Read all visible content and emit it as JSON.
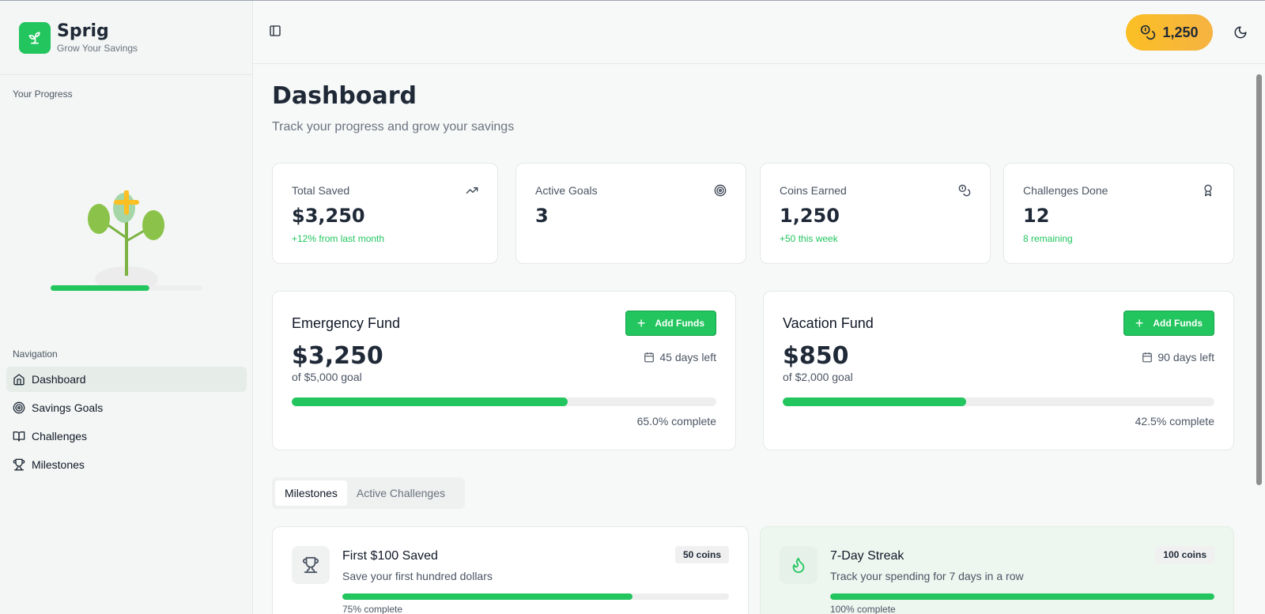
{
  "brand": {
    "name": "Sprig",
    "tagline": "Grow Your Savings"
  },
  "sidebar": {
    "progress_label": "Your Progress",
    "plant_progress": 0.65,
    "nav_label": "Navigation",
    "items": [
      {
        "label": "Dashboard",
        "icon": "home-icon",
        "active": true
      },
      {
        "label": "Savings Goals",
        "icon": "target-icon"
      },
      {
        "label": "Challenges",
        "icon": "book-icon"
      },
      {
        "label": "Milestones",
        "icon": "trophy-icon"
      }
    ]
  },
  "header": {
    "coins": "1,250"
  },
  "page": {
    "title": "Dashboard",
    "subtitle": "Track your progress and grow your savings"
  },
  "stats": [
    {
      "title": "Total Saved",
      "value": "$3,250",
      "note": "+12% from last month",
      "icon": "trending-up-icon"
    },
    {
      "title": "Active Goals",
      "value": "3",
      "note": "",
      "icon": "target-icon"
    },
    {
      "title": "Coins Earned",
      "value": "1,250",
      "note": "+50 this week",
      "icon": "coins-icon"
    },
    {
      "title": "Challenges Done",
      "value": "12",
      "note": "8 remaining",
      "icon": "award-icon"
    }
  ],
  "goals": [
    {
      "title": "Emergency Fund",
      "button": "Add Funds",
      "amount": "$3,250",
      "of_goal": "of $5,000 goal",
      "days_left": "45 days left",
      "percent": 65.0,
      "complete": "65.0% complete"
    },
    {
      "title": "Vacation Fund",
      "button": "Add Funds",
      "amount": "$850",
      "of_goal": "of $2,000 goal",
      "days_left": "90 days left",
      "percent": 42.5,
      "complete": "42.5% complete"
    }
  ],
  "tabs": [
    {
      "label": "Milestones",
      "active": true
    },
    {
      "label": "Active Challenges"
    }
  ],
  "milestones": [
    {
      "title": "First $100 Saved",
      "desc": "Save your first hundred dollars",
      "coins": "50 coins",
      "percent": 75,
      "complete": "75% complete",
      "icon": "trophy-icon"
    },
    {
      "title": "7-Day Streak",
      "desc": "Track your spending for 7 days in a row",
      "coins": "100 coins",
      "percent": 100,
      "complete": "100% complete",
      "icon": "flame-icon"
    }
  ],
  "colors": {
    "accent": "#22c55e",
    "coin": "#fbbf24"
  }
}
